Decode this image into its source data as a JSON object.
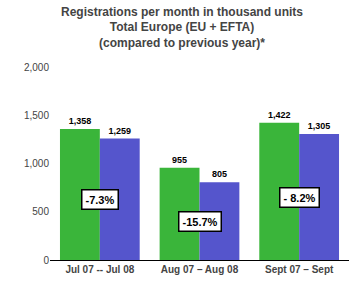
{
  "chart_data": {
    "type": "bar",
    "title": "Registrations per month in thousand units\nTotal Europe (EU + EFTA)\n(compared to previous year)*",
    "categories": [
      "Jul 07 -- Jul 08",
      "Aug 07 – Aug 08",
      "Sept 07 – Sept"
    ],
    "series": [
      {
        "color": "#3ab53a",
        "values": [
          1358,
          955,
          1422
        ],
        "value_labels": [
          "1,358",
          "955",
          "1,422"
        ]
      },
      {
        "color": "#5555cc",
        "values": [
          1259,
          805,
          1305
        ],
        "value_labels": [
          "1,259",
          "805",
          "1,305"
        ]
      }
    ],
    "annotations": [
      {
        "text": "-7.3%",
        "x": "Jul 07 -- Jul 08"
      },
      {
        "text": "-15.7%",
        "x": "Aug 07 – Aug 08"
      },
      {
        "text": "- 8.2%",
        "x": "Sept 07 – Sept"
      }
    ],
    "ylim": [
      0,
      2000
    ],
    "yticks": [
      0,
      500,
      {
        "value": 1000,
        "label": "1,000"
      },
      {
        "value": 1500,
        "label": "1,500"
      },
      {
        "value": 2000,
        "label": "2,000"
      }
    ],
    "data_labels": true,
    "grid": false
  }
}
